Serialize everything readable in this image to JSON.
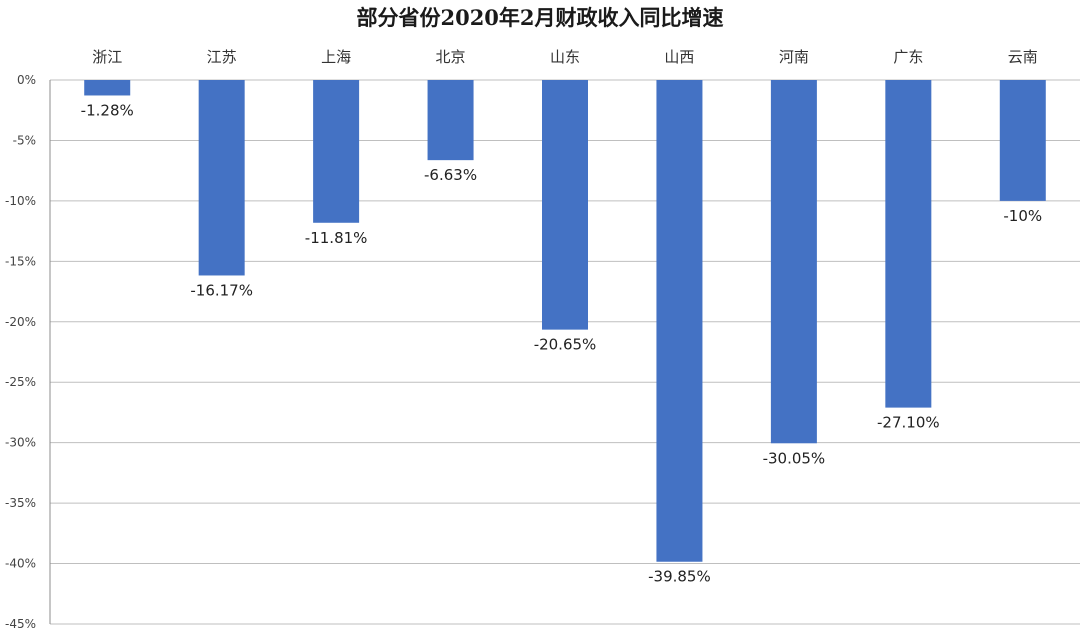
{
  "chart_data": {
    "type": "bar",
    "title": "部分省份2020年2月财政收入同比增速",
    "xlabel": "",
    "ylabel": "",
    "categories": [
      "浙江",
      "江苏",
      "上海",
      "北京",
      "山东",
      "山西",
      "河南",
      "广东",
      "云南"
    ],
    "values": [
      -1.28,
      -16.17,
      -11.81,
      -6.63,
      -20.65,
      -39.85,
      -30.05,
      -27.1,
      -10
    ],
    "data_labels": [
      "-1.28%",
      "-16.17%",
      "-11.81%",
      "-6.63%",
      "-20.65%",
      "-39.85%",
      "-30.05%",
      "-27.10%",
      "-10%"
    ],
    "ylim": [
      -45,
      0
    ],
    "yticks": [
      0,
      -5,
      -10,
      -15,
      -20,
      -25,
      -30,
      -35,
      -40,
      -45
    ],
    "ytick_labels": [
      "0%",
      "-5%",
      "-10%",
      "-15%",
      "-20%",
      "-25%",
      "-30%",
      "-35%",
      "-40%",
      "-45%"
    ],
    "category_axis_position": "top",
    "grid": true,
    "legend": "none",
    "bar_color": "#4472C4",
    "grid_color": "#BFBFBF"
  }
}
